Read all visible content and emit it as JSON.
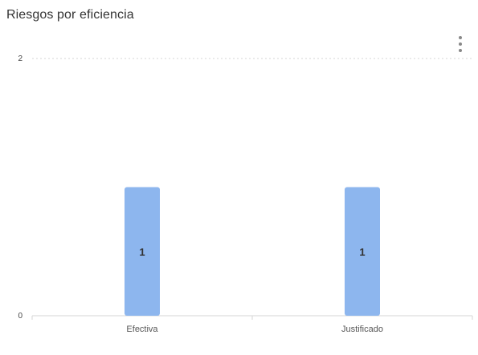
{
  "header": {
    "title": "Riesgos por eficiencia",
    "menu_icon": "more-vertical-icon"
  },
  "chart_data": {
    "type": "bar",
    "title": "Riesgos por eficiencia",
    "categories": [
      "Efectiva",
      "Justificado"
    ],
    "values": [
      1,
      1
    ],
    "data_labels": [
      "1",
      "1"
    ],
    "ylim": [
      0,
      2
    ],
    "yticks": [
      "0",
      "2"
    ],
    "xlabel": "",
    "ylabel": "",
    "grid": true,
    "legend": "none",
    "bar_color": "#8DB6EE"
  }
}
